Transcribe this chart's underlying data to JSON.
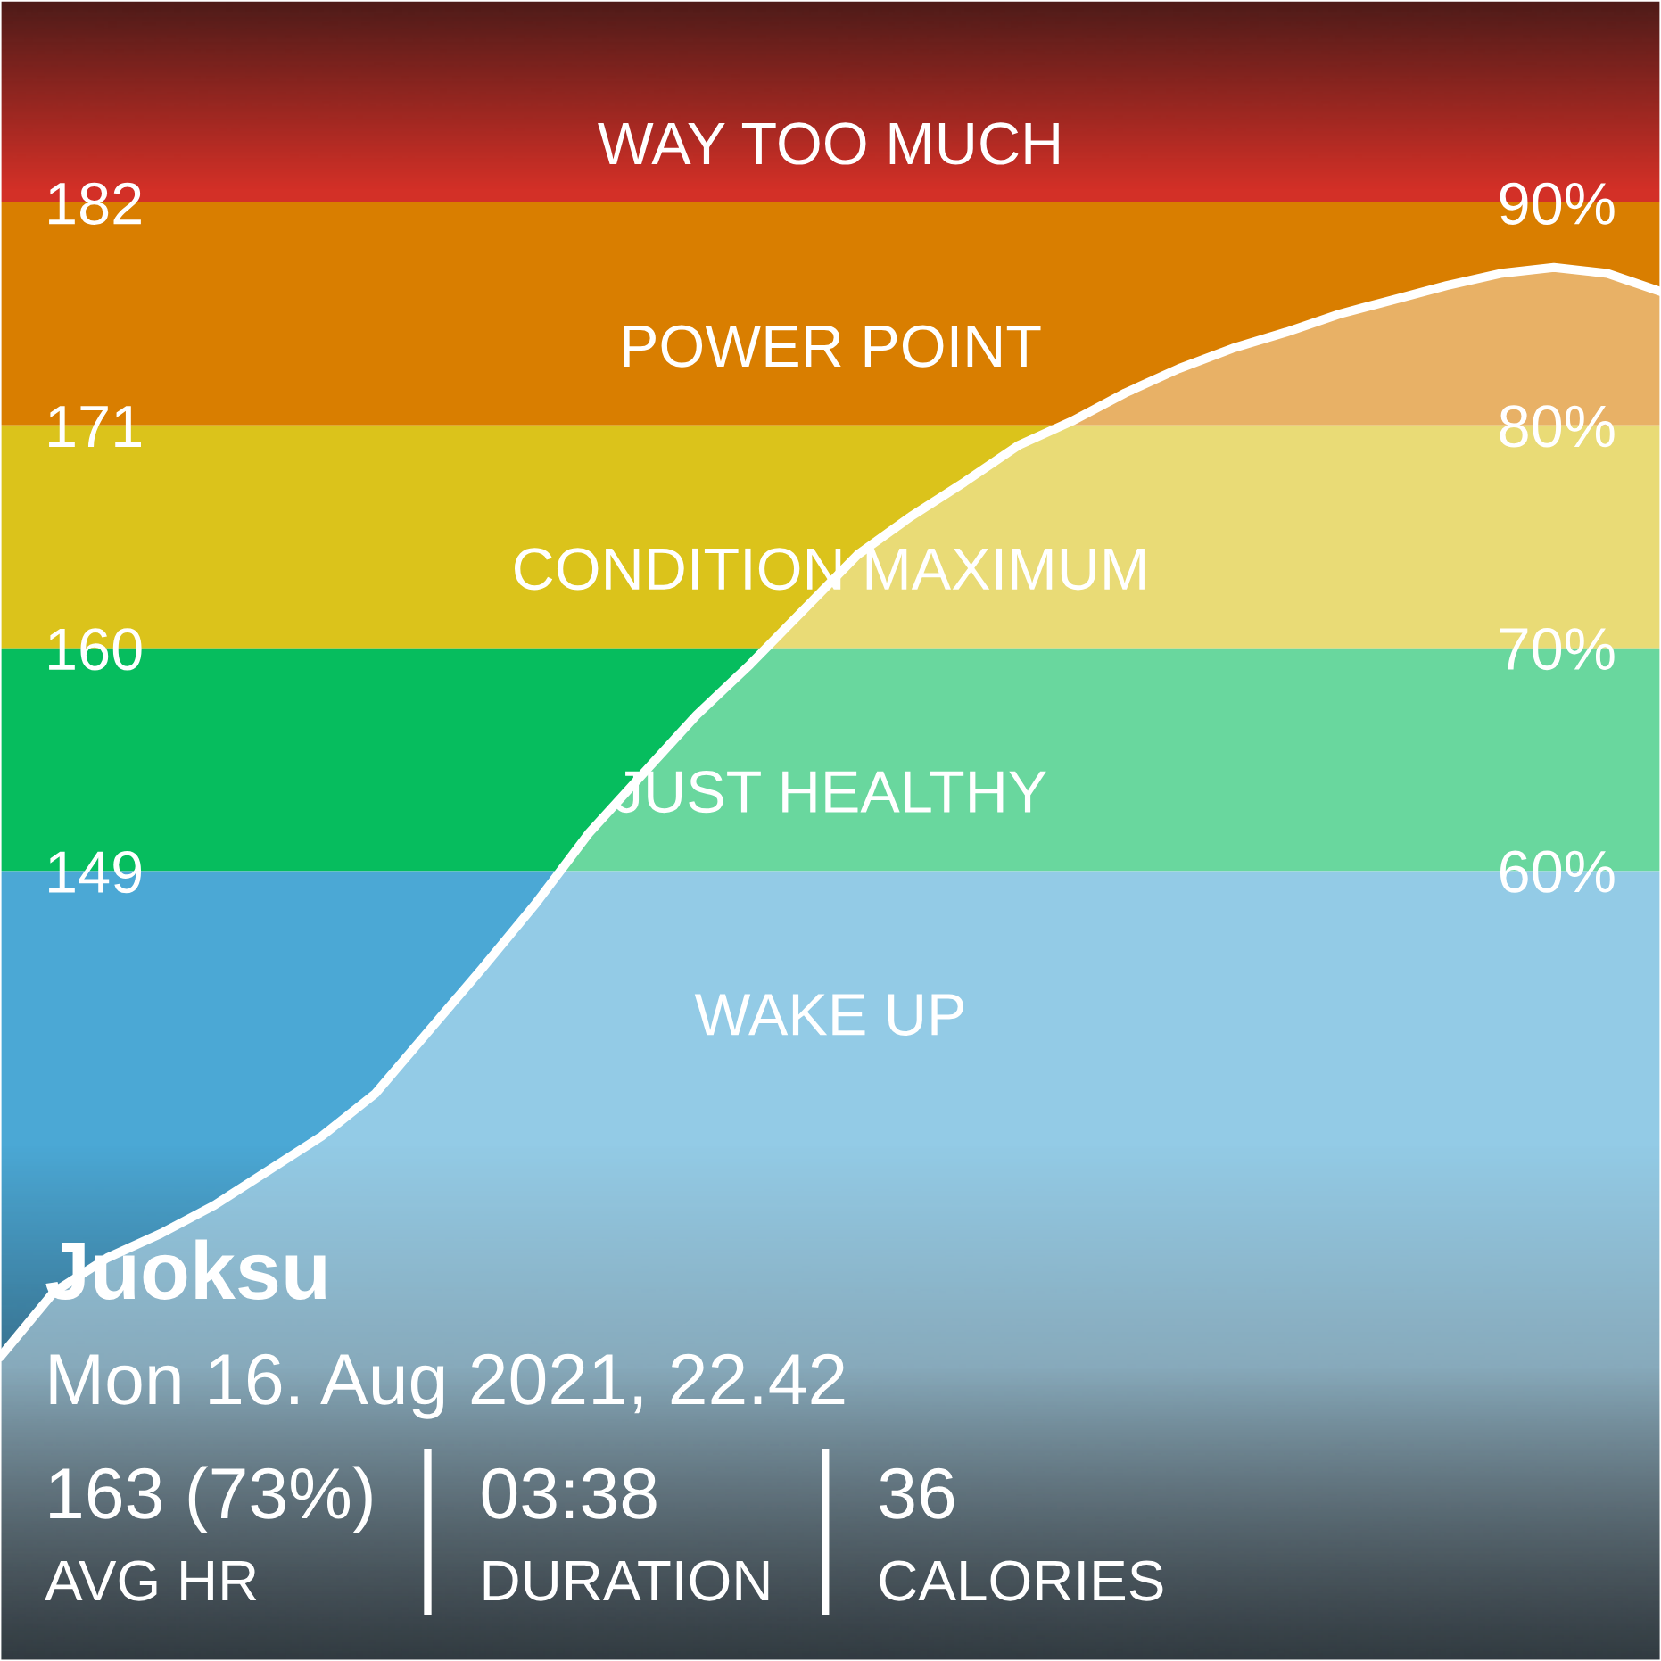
{
  "chart_data": {
    "type": "area",
    "title": "Juoksu",
    "subtitle": "Mon 16. Aug 2021, 22.42",
    "categories": [
      null,
      null,
      null,
      null,
      null,
      null,
      null,
      null,
      null,
      null,
      null,
      null,
      null,
      null,
      null,
      null,
      null,
      null,
      null,
      null,
      null,
      null,
      null,
      null,
      null,
      null,
      null,
      null,
      null,
      null,
      null,
      null
    ],
    "series": [
      {
        "color": "#ffffff",
        "values": [
          125.0,
          128.2,
          129.9,
          131.1,
          132.5,
          134.2,
          135.9,
          138.0,
          141.1,
          144.2,
          147.4,
          150.9,
          153.8,
          156.7,
          159.2,
          161.9,
          164.6,
          166.5,
          168.2,
          170.0,
          171.2,
          172.6,
          173.8,
          174.8,
          175.6,
          176.5,
          177.2,
          177.9,
          178.5,
          178.8,
          178.5,
          177.6
        ]
      }
    ],
    "ylim": [
      110,
      192
    ],
    "yticks": [
      149,
      160,
      171,
      182
    ],
    "y2lim": [
      24.5,
      99.1
    ],
    "y2ticks": [
      {
        "value": 60,
        "label": "60%"
      },
      {
        "value": 70,
        "label": "70%"
      },
      {
        "value": 80,
        "label": "80%"
      },
      {
        "value": 90,
        "label": "90%"
      }
    ],
    "bands": [
      {
        "axis": "y",
        "from": 182,
        "to": 192,
        "label": "WAY TOO MUCH",
        "color": "#d33027"
      },
      {
        "axis": "y",
        "from": 171,
        "to": 182,
        "label": "POWER POINT",
        "color": "#d97e00"
      },
      {
        "axis": "y",
        "from": 160,
        "to": 171,
        "label": "CONDITION MAXIMUM",
        "color": "#dbc31b"
      },
      {
        "axis": "y",
        "from": 149,
        "to": 160,
        "label": "JUST HEALTHY",
        "color": "#06bd5e"
      },
      {
        "axis": "y",
        "from": 110,
        "to": 149,
        "label": "WAKE UP",
        "color": "#4ba8d5"
      }
    ],
    "annotations": [
      "163 (73%)",
      "AVG HR",
      "03:38",
      "DURATION",
      "36",
      "CALORIES"
    ]
  }
}
